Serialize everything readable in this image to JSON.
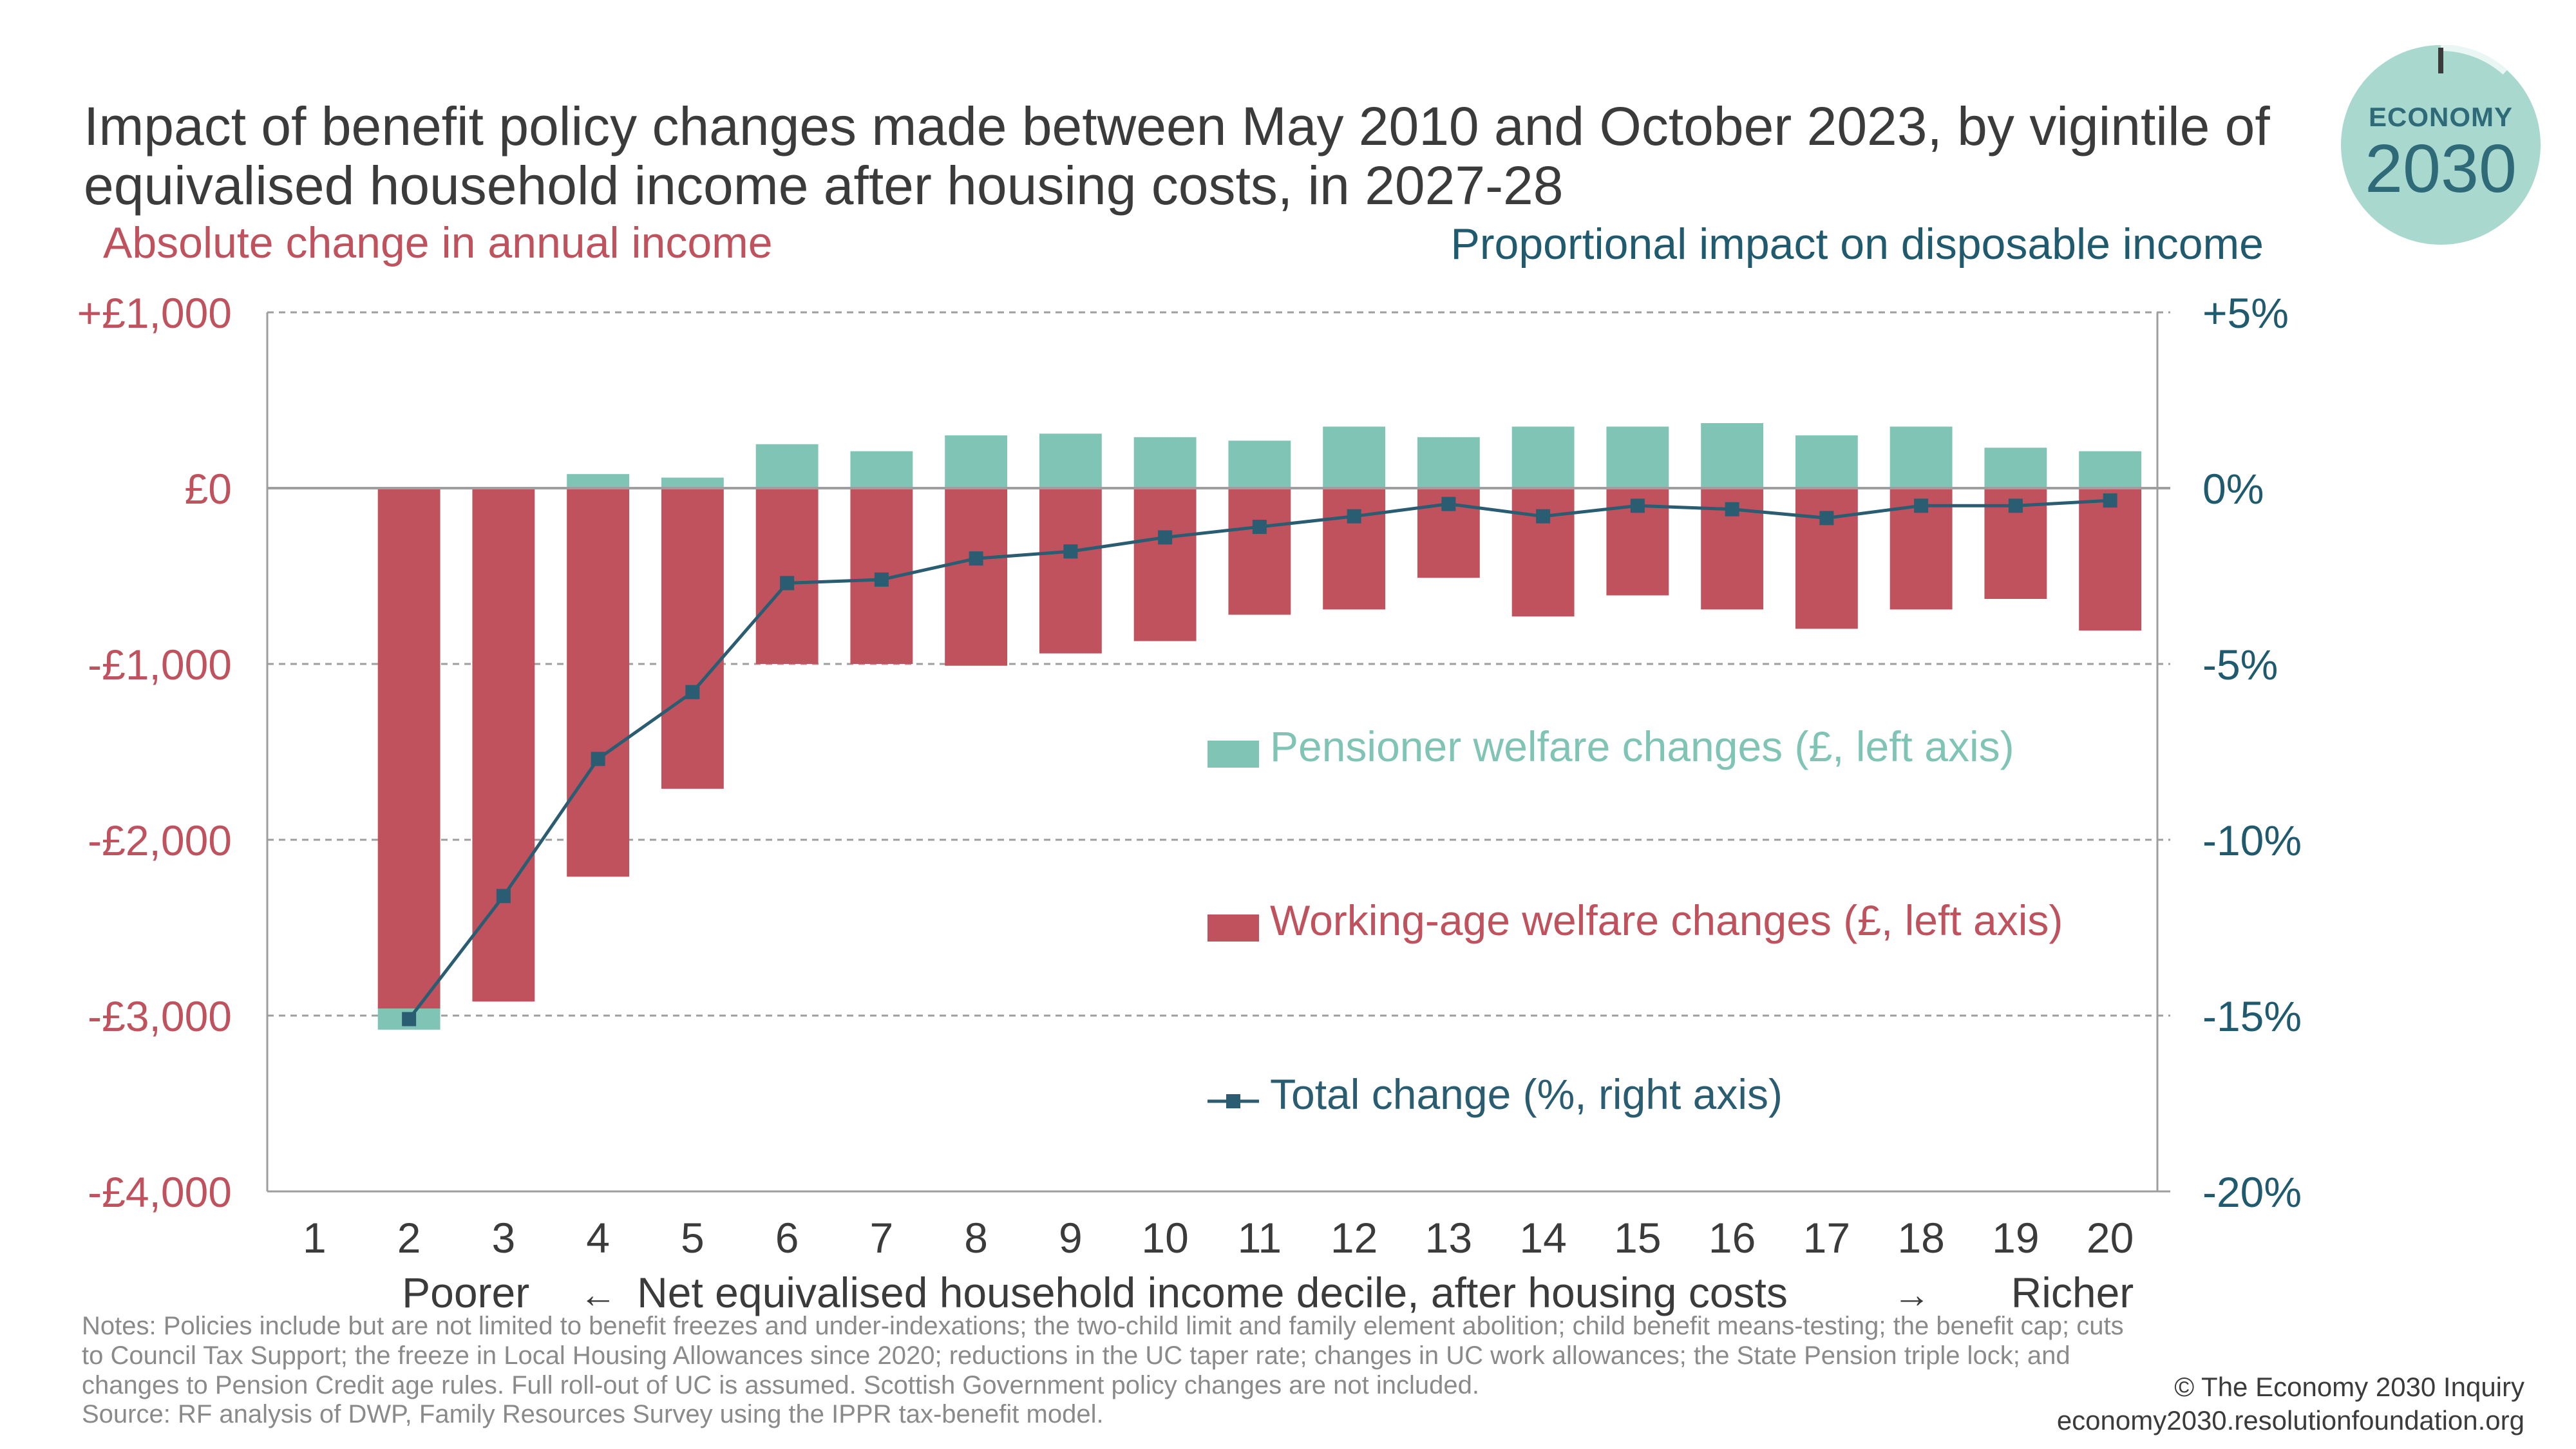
{
  "title": "Impact of benefit policy changes made between May 2010 and October 2023, by vigintile of equivalised household income after housing costs, in 2027-28",
  "left_axis_title": "Absolute change in annual income",
  "right_axis_title": "Proportional impact on disposable income",
  "logo": {
    "word": "ECONOMY",
    "year": "2030"
  },
  "notes": "Notes: Policies include but are not limited to benefit freezes and under-indexations; the two-child limit and family element abolition; child benefit means-testing; the benefit cap; cuts to Council Tax Support; the freeze in Local Housing Allowances since 2020; reductions in the UC taper rate; changes in UC work allowances; the State Pension triple lock; and changes to Pension Credit age rules. Full roll-out of UC is assumed. Scottish Government policy changes are not included.",
  "source": "Source: RF analysis of DWP, Family Resources Survey using the IPPR tax-benefit model.",
  "credit": {
    "line1": "© The Economy 2030 Inquiry",
    "line2": "economy2030.resolutionfoundation.org"
  },
  "colors": {
    "pensioner": "#7fc4b4",
    "working_age": "#c0525e",
    "total": "#2a5d71",
    "grid": "#9e9e9e",
    "left_axis": "#c0525e",
    "right_axis": "#1f5a6e"
  },
  "chart_data": {
    "type": "bar",
    "categories": [
      "1",
      "2",
      "3",
      "4",
      "5",
      "6",
      "7",
      "8",
      "9",
      "10",
      "11",
      "12",
      "13",
      "14",
      "15",
      "16",
      "17",
      "18",
      "19",
      "20"
    ],
    "xlabel": {
      "poorer": "Poorer",
      "left_arrow": "←",
      "middle": "Net equivalised household income decile, after housing costs",
      "right_arrow": "→",
      "richer": "Richer"
    },
    "y_left": {
      "min": -4000,
      "max": 1000,
      "ticks": [
        1000,
        0,
        -1000,
        -2000,
        -3000,
        -4000
      ],
      "tick_labels": [
        "+£1,000",
        "£0",
        "-£1,000",
        "-£2,000",
        "-£3,000",
        "-£4,000"
      ]
    },
    "y_right": {
      "min": -20,
      "max": 5,
      "ticks": [
        5,
        0,
        -5,
        -10,
        -15,
        -20
      ],
      "tick_labels": [
        "+5%",
        "0%",
        "-5%",
        "-10%",
        "-15%",
        "-20%"
      ]
    },
    "grid": true,
    "legend_placement": "inside-right",
    "series": [
      {
        "name": "Pensioner welfare changes (£, left axis)",
        "type": "bar",
        "axis": "left",
        "values": [
          null,
          -120,
          0,
          80,
          60,
          250,
          210,
          300,
          310,
          290,
          270,
          350,
          290,
          350,
          350,
          370,
          300,
          350,
          230,
          210
        ]
      },
      {
        "name": "Working-age welfare changes (£, left axis)",
        "type": "bar",
        "axis": "left",
        "values": [
          null,
          -2960,
          -2920,
          -2210,
          -1710,
          -1000,
          -1000,
          -1010,
          -940,
          -870,
          -720,
          -690,
          -510,
          -730,
          -610,
          -690,
          -800,
          -690,
          -630,
          -810
        ]
      },
      {
        "name": "Total change (%, right axis)",
        "type": "line",
        "axis": "right",
        "values": [
          null,
          -15.1,
          -11.6,
          -7.7,
          -5.8,
          -2.7,
          -2.6,
          -2.0,
          -1.8,
          -1.4,
          -1.1,
          -0.8,
          -0.45,
          -0.8,
          -0.5,
          -0.6,
          -0.85,
          -0.5,
          -0.5,
          -0.35
        ]
      }
    ]
  }
}
